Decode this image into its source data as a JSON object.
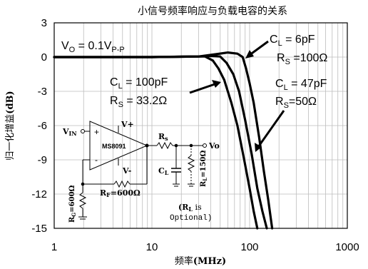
{
  "chart_data": {
    "type": "line",
    "title": "小信号频率响应与负载电容的关系",
    "xlabel": "频率",
    "xlabel_unit": "(MHz)",
    "ylabel": "归一化增益",
    "ylabel_unit": "(dB)",
    "x_scale": "log",
    "xlim": [
      1,
      1000
    ],
    "ylim": [
      -15,
      3
    ],
    "x_ticks": [
      1,
      10,
      100,
      1000
    ],
    "x_tick_labels": [
      "1",
      "10",
      "100",
      "1000"
    ],
    "y_ticks": [
      3,
      0,
      -3,
      -6,
      -9,
      -12,
      -15
    ],
    "y_tick_labels": [
      "3",
      "0",
      "-3",
      "-6",
      "-9",
      "-12",
      "-15"
    ],
    "grid": true,
    "series": [
      {
        "points": [
          [
            1,
            0
          ],
          [
            10,
            0
          ],
          [
            30,
            0.05
          ],
          [
            45,
            0.25
          ],
          [
            60,
            0.4
          ],
          [
            75,
            0.3
          ],
          [
            85,
            0
          ],
          [
            92,
            -1
          ],
          [
            100,
            -2.3
          ],
          [
            110,
            -4
          ],
          [
            125,
            -7
          ],
          [
            140,
            -10
          ],
          [
            155,
            -12.5
          ],
          [
            170,
            -15
          ]
        ]
      },
      {
        "points": [
          [
            1,
            0
          ],
          [
            10,
            0
          ],
          [
            30,
            0.05
          ],
          [
            40,
            0.1
          ],
          [
            50,
            0.05
          ],
          [
            58,
            -0.5
          ],
          [
            68,
            -1.5
          ],
          [
            78,
            -3
          ],
          [
            90,
            -5.5
          ],
          [
            105,
            -8.5
          ],
          [
            120,
            -11.5
          ],
          [
            135,
            -13.5
          ],
          [
            150,
            -15
          ]
        ]
      },
      {
        "points": [
          [
            1,
            0
          ],
          [
            10,
            0
          ],
          [
            25,
            0.05
          ],
          [
            35,
            0.05
          ],
          [
            42,
            -0.3
          ],
          [
            48,
            -1
          ],
          [
            55,
            -2
          ],
          [
            65,
            -4
          ],
          [
            75,
            -6
          ],
          [
            88,
            -9
          ],
          [
            100,
            -11.5
          ],
          [
            110,
            -13.5
          ],
          [
            120,
            -15
          ]
        ]
      }
    ],
    "annotations": {
      "vo": {
        "base": "V",
        "sub": "O",
        "mid": " = 0.1V",
        "sub2": "P-P"
      },
      "c6": {
        "base": "C",
        "sub": "L",
        "rest": " = 6pF"
      },
      "rs100": {
        "base": "R",
        "sub": "S",
        "rest": " =100Ω"
      },
      "c100": {
        "base": "C",
        "sub": "L",
        "rest": " = 100pF"
      },
      "rs33": {
        "base": "R",
        "sub": "S",
        "rest": " = 33.2Ω"
      },
      "c47": {
        "base": "C",
        "sub": "L",
        "rest": " = 47pF"
      },
      "rs50": {
        "base": "R",
        "sub": "S",
        "rest": "=50Ω"
      }
    },
    "circuit": {
      "vin": "V",
      "vin_sub": "IN",
      "opamp": "MS8091",
      "plus": "+",
      "minus": "-",
      "vplus": "V+",
      "vminus": "V-",
      "rs": "R",
      "rs_sub": "s",
      "vo": "Vo",
      "cl": "C",
      "cl_sub": "L",
      "rl": "R",
      "rl_sub": "L",
      "rl_val": "=150Ω",
      "rf": "R",
      "rf_sub": "F",
      "rf_val": "=600Ω",
      "rg": "R",
      "rg_sub": "G",
      "rg_val": "=600Ω",
      "note1_open": "(R",
      "note1_sub": "L",
      "note1_rest": " is",
      "note2": "Optional)"
    }
  }
}
